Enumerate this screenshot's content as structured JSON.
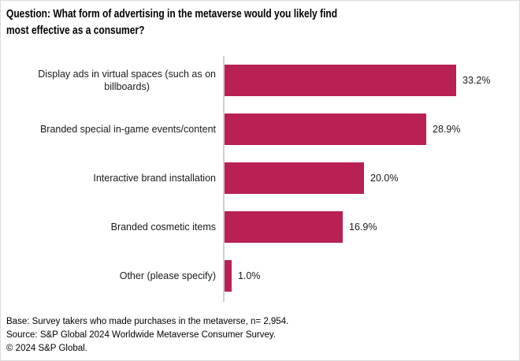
{
  "title": "Question: What form of advertising in the metaverse would you likely find most effective as a consumer?",
  "display": {
    "title": "Question: What form of advertising in the metaverse would you likely find\nmost effective as a consumer?",
    "category_labels": [
      "Display ads in virtual spaces (such as on\nbillboards)",
      "Branded special in-game events/content",
      "Interactive brand installation",
      "Branded cosmetic items",
      "Other (please specify)"
    ]
  },
  "chart_data": {
    "type": "bar",
    "orientation": "horizontal",
    "title": "Question: What form of advertising in the metaverse would you likely find most effective as a consumer?",
    "categories": [
      "Display ads in virtual spaces (such as on billboards)",
      "Branded special in-game events/content",
      "Interactive brand installation",
      "Branded cosmetic items",
      "Other (please specify)"
    ],
    "values": [
      33.2,
      28.9,
      20.0,
      16.9,
      1.0
    ],
    "value_labels": [
      "33.2%",
      "28.9%",
      "20.0%",
      "16.9%",
      "1.0%"
    ],
    "unit": "percent",
    "xlabel": "",
    "ylabel": "",
    "xlim": [
      0,
      33.2
    ],
    "grid": false,
    "legend": false,
    "bar_color": "#B92155"
  },
  "colors": {
    "bar": "#B92155",
    "axis_line": "#cfcfcf",
    "text": "#000000",
    "background": "#ffffff"
  },
  "footer": {
    "base": "Base: Survey takers who made purchases in the metaverse, n= 2,954.",
    "source": "Source: S&P Global 2024 Worldwide Metaverse Consumer Survey.",
    "copyright": "© 2024 S&P Global."
  }
}
